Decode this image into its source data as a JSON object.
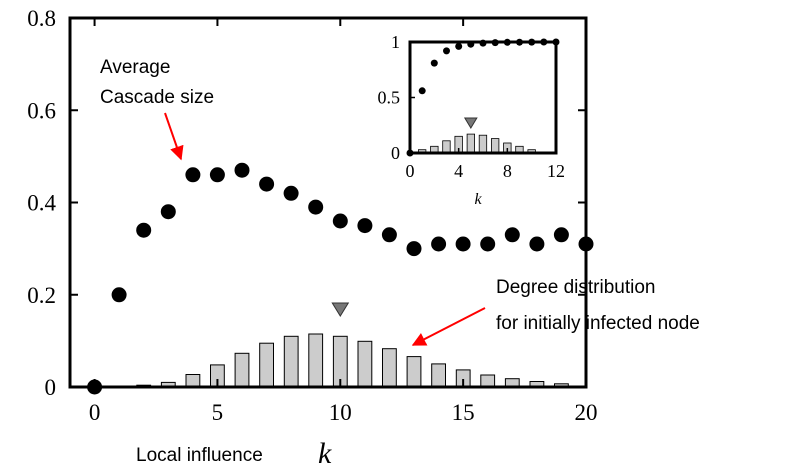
{
  "chart_data": [
    {
      "type": "scatter",
      "xlabel": "Local influence",
      "xlabel_symbol": "k",
      "xlim": [
        -1,
        20
      ],
      "ylim": [
        0,
        0.8
      ],
      "x_ticks": [
        0,
        5,
        10,
        15,
        20
      ],
      "x_tick_labels": [
        "0",
        "5",
        "10",
        "15",
        "20"
      ],
      "y_ticks": [
        0,
        0.2,
        0.4,
        0.6,
        0.8
      ],
      "y_tick_labels": [
        "0",
        "0.2",
        "0.4",
        "0.6",
        "0.8"
      ],
      "series": [
        {
          "name": "Average Cascade size",
          "marker": "filled-circle",
          "color": "#000000",
          "x": [
            0,
            1,
            2,
            3,
            4,
            5,
            6,
            7,
            8,
            9,
            10,
            11,
            12,
            13,
            14,
            15,
            16,
            17,
            18,
            19,
            20
          ],
          "y": [
            0.0,
            0.2,
            0.34,
            0.38,
            0.46,
            0.46,
            0.47,
            0.44,
            0.42,
            0.39,
            0.36,
            0.35,
            0.33,
            0.3,
            0.31,
            0.31,
            0.31,
            0.33,
            0.31,
            0.33,
            0.31
          ]
        },
        {
          "name": "Degree distribution for initially infected node",
          "type": "bar",
          "color": "#cccccc",
          "x": [
            0,
            1,
            2,
            3,
            4,
            5,
            6,
            7,
            8,
            9,
            10,
            11,
            12,
            13,
            14,
            15,
            16,
            17,
            18,
            19
          ],
          "y": [
            0.001,
            0.002,
            0.004,
            0.01,
            0.027,
            0.048,
            0.073,
            0.095,
            0.11,
            0.115,
            0.11,
            0.099,
            0.083,
            0.066,
            0.05,
            0.037,
            0.026,
            0.018,
            0.012,
            0.007
          ]
        }
      ],
      "marker_triangle_x": 10,
      "annotations": [
        {
          "lines": [
            "Average",
            "Cascade size"
          ],
          "arrow_color": "#ff0000"
        },
        {
          "lines": [
            "Degree distribution",
            "for initially infected node"
          ],
          "arrow_color": "#ff0000"
        }
      ]
    },
    {
      "type": "scatter",
      "role": "inset",
      "xlabel_symbol": "k",
      "xlim": [
        0,
        12
      ],
      "ylim": [
        0,
        1
      ],
      "x_ticks": [
        0,
        4,
        8,
        12
      ],
      "x_tick_labels": [
        "0",
        "4",
        "8",
        "12"
      ],
      "y_ticks": [
        0,
        0.5,
        1
      ],
      "y_tick_labels": [
        "0",
        "0.5",
        "1"
      ],
      "series": [
        {
          "marker": "filled-circle",
          "color": "#000000",
          "x": [
            0,
            1,
            2,
            3,
            4,
            5,
            6,
            7,
            8,
            9,
            10,
            11,
            12
          ],
          "y": [
            0.0,
            0.56,
            0.81,
            0.92,
            0.96,
            0.98,
            0.99,
            0.995,
            0.997,
            0.998,
            0.999,
            1.0,
            1.0
          ]
        },
        {
          "type": "bar",
          "color": "#cccccc",
          "x": [
            1,
            2,
            3,
            4,
            5,
            6,
            7,
            8,
            9,
            10,
            11
          ],
          "y": [
            0.03,
            0.06,
            0.11,
            0.15,
            0.17,
            0.16,
            0.13,
            0.09,
            0.06,
            0.03,
            0.01
          ]
        }
      ],
      "marker_triangle_x": 5
    }
  ]
}
